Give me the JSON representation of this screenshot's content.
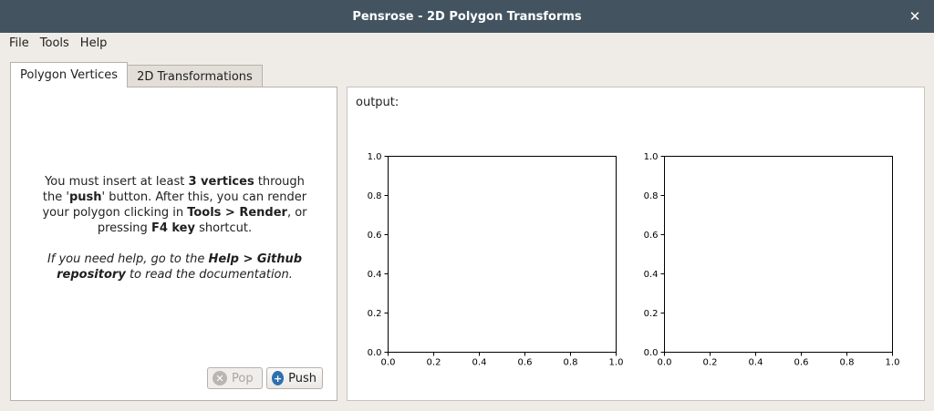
{
  "window": {
    "title": "Pensrose - 2D Polygon Transforms"
  },
  "menu": {
    "file": "File",
    "tools": "Tools",
    "help": "Help"
  },
  "tabs": [
    {
      "label": "Polygon Vertices",
      "active": true
    },
    {
      "label": "2D Transformations",
      "active": false
    }
  ],
  "instructions": {
    "t1": "You must insert at least ",
    "b1": "3 vertices",
    "t2": " through the '",
    "b2": "push",
    "t3": "' button. After this, you can render your polygon clicking in ",
    "b3": "Tools > Render",
    "t4": ", or pressing ",
    "b4": "F4 key",
    "t5": " shortcut.",
    "h1": "If you need help, go to the ",
    "hb": "Help > Github repository",
    "h2": " to read the documentation."
  },
  "buttons": {
    "pop": "Pop",
    "push": "Push"
  },
  "output": {
    "label": "output:"
  },
  "chart_data": [
    {
      "type": "line",
      "series": [],
      "xlim": [
        0.0,
        1.0
      ],
      "ylim": [
        0.0,
        1.0
      ],
      "xticks": [
        "0.0",
        "0.2",
        "0.4",
        "0.6",
        "0.8",
        "1.0"
      ],
      "yticks": [
        "0.0",
        "0.2",
        "0.4",
        "0.6",
        "0.8",
        "1.0"
      ],
      "title": "",
      "xlabel": "",
      "ylabel": ""
    },
    {
      "type": "line",
      "series": [],
      "xlim": [
        0.0,
        1.0
      ],
      "ylim": [
        0.0,
        1.0
      ],
      "xticks": [
        "0.0",
        "0.2",
        "0.4",
        "0.6",
        "0.8",
        "1.0"
      ],
      "yticks": [
        "0.0",
        "0.2",
        "0.4",
        "0.6",
        "0.8",
        "1.0"
      ],
      "title": "",
      "xlabel": "",
      "ylabel": ""
    }
  ]
}
